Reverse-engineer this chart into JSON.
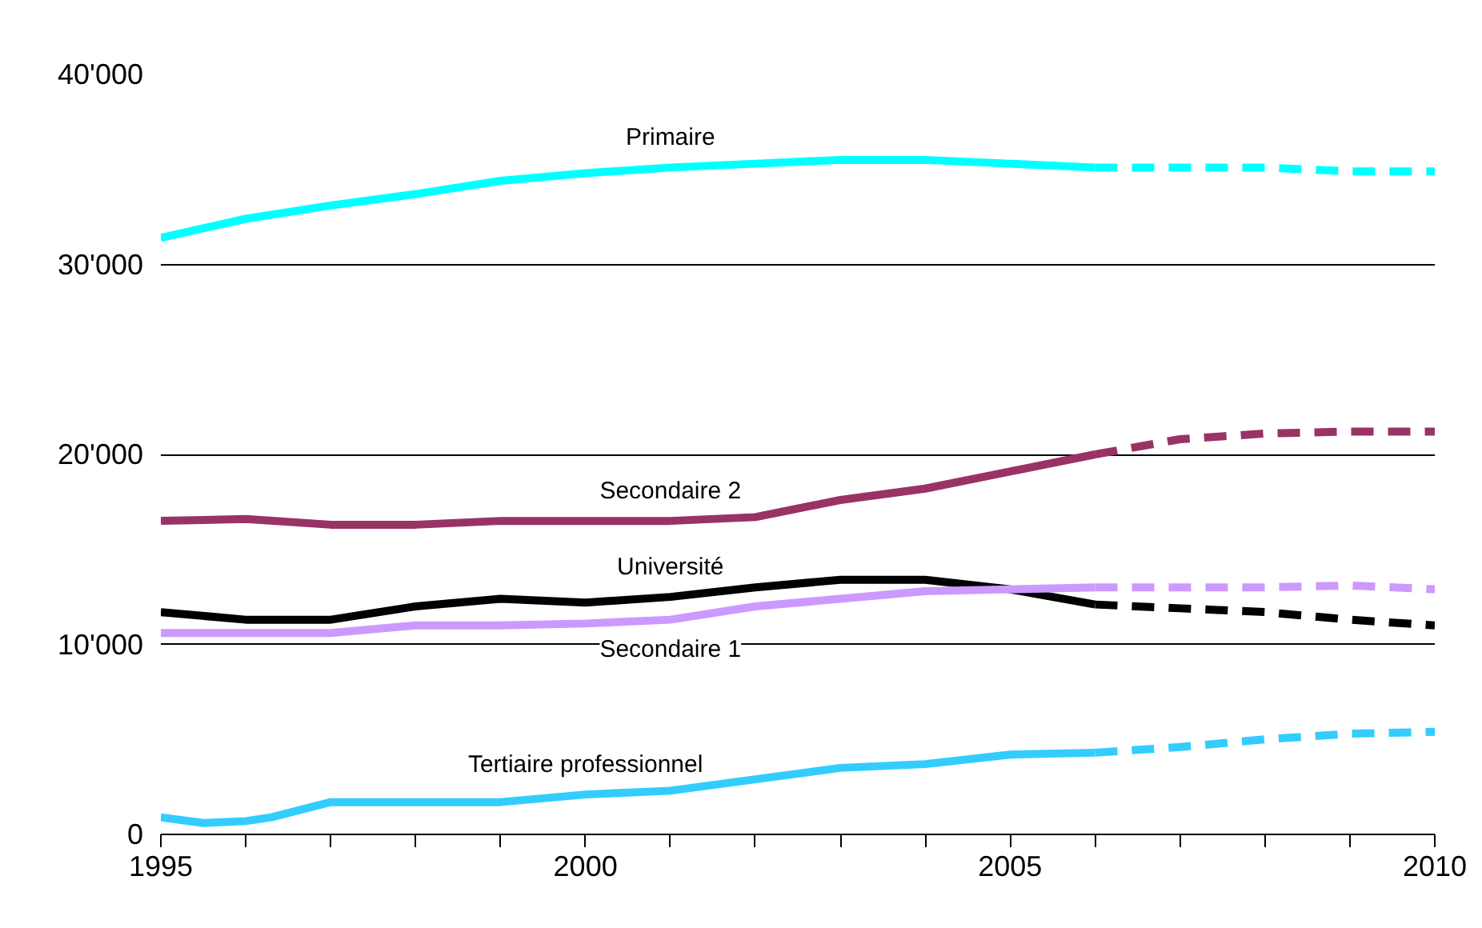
{
  "chart_data": {
    "type": "line",
    "xlim": [
      1995,
      2010
    ],
    "xticks": [
      1995,
      {
        "value": 1996,
        "label": null
      },
      {
        "value": 1997,
        "label": null
      },
      {
        "value": 1998,
        "label": null
      },
      {
        "value": 1999,
        "label": null
      },
      2000,
      {
        "value": 2001,
        "label": null
      },
      {
        "value": 2002,
        "label": null
      },
      {
        "value": 2003,
        "label": null
      },
      {
        "value": 2004,
        "label": null
      },
      2005,
      {
        "value": 2006,
        "label": null
      },
      {
        "value": 2007,
        "label": null
      },
      {
        "value": 2008,
        "label": null
      },
      {
        "value": 2009,
        "label": null
      },
      2010
    ],
    "ylim": [
      0,
      40000
    ],
    "yticks": [
      {
        "value": 0,
        "label": "0"
      },
      {
        "value": 10000,
        "label": "10'000"
      },
      {
        "value": 20000,
        "label": "20'000"
      },
      {
        "value": 30000,
        "label": "30'000"
      },
      {
        "value": 40000,
        "label": "40'000"
      }
    ],
    "grid": "y",
    "series": [
      {
        "name": "Primaire",
        "color": "#00ffff",
        "line_style": "solid",
        "x": [
          1995,
          1996,
          1997,
          1998,
          1999,
          2000,
          2001,
          2002,
          2003,
          2004,
          2005,
          2006
        ],
        "values": [
          31400,
          32400,
          33100,
          33700,
          34400,
          34800,
          35100,
          35300,
          35500,
          35500,
          35300,
          35100
        ]
      },
      {
        "color": "#00ffff",
        "line_style": "dashed",
        "x": [
          2006,
          2007,
          2008,
          2009,
          2010
        ],
        "values": [
          35100,
          35100,
          35100,
          34900,
          34900
        ]
      },
      {
        "name": "Secondaire 2",
        "color": "#993366",
        "line_style": "solid",
        "x": [
          1995,
          1996,
          1997,
          1998,
          1999,
          2000,
          2001,
          2002,
          2003,
          2004,
          2005,
          2006
        ],
        "values": [
          16500,
          16600,
          16300,
          16300,
          16500,
          16500,
          16500,
          16700,
          17600,
          18200,
          19100,
          20000
        ]
      },
      {
        "color": "#993366",
        "line_style": "dashed",
        "x": [
          2006,
          2007,
          2008,
          2009,
          2010
        ],
        "values": [
          20000,
          20800,
          21100,
          21200,
          21200
        ]
      },
      {
        "name": "Université",
        "color": "#000000",
        "line_style": "solid",
        "x": [
          1995,
          1996,
          1997,
          1998,
          1999,
          2000,
          2001,
          2002,
          2003,
          2004,
          2005,
          2006
        ],
        "values": [
          11700,
          11300,
          11300,
          12000,
          12400,
          12200,
          12500,
          13000,
          13400,
          13400,
          12900,
          12100
        ]
      },
      {
        "color": "#000000",
        "line_style": "dashed",
        "x": [
          2006,
          2007,
          2008,
          2009,
          2010
        ],
        "values": [
          12100,
          11900,
          11700,
          11300,
          11000
        ]
      },
      {
        "name": "Secondaire 1",
        "color": "#cc99ff",
        "line_style": "solid",
        "x": [
          1995,
          1996,
          1997,
          1998,
          1999,
          2000,
          2001,
          2002,
          2003,
          2004,
          2005,
          2006
        ],
        "values": [
          10600,
          10600,
          10600,
          11000,
          11000,
          11100,
          11300,
          12000,
          12400,
          12800,
          12900,
          13000
        ]
      },
      {
        "color": "#cc99ff",
        "line_style": "dashed",
        "x": [
          2006,
          2007,
          2008,
          2009,
          2010
        ],
        "values": [
          13000,
          13000,
          13000,
          13100,
          12900
        ]
      },
      {
        "name": "Tertiaire professionnel",
        "color": "#33ccff",
        "line_style": "solid",
        "x": [
          1995,
          1995.5,
          1996,
          1996.3,
          1997,
          1998,
          1999,
          2000,
          2001,
          2002,
          2003,
          2004,
          2005,
          2006
        ],
        "values": [
          900,
          600,
          700,
          900,
          1700,
          1700,
          1700,
          2100,
          2300,
          2900,
          3500,
          3700,
          4200,
          4300
        ]
      },
      {
        "color": "#33ccff",
        "line_style": "dashed",
        "x": [
          2006,
          2007,
          2008,
          2009,
          2010
        ],
        "values": [
          4300,
          4600,
          5000,
          5300,
          5400
        ]
      }
    ]
  }
}
